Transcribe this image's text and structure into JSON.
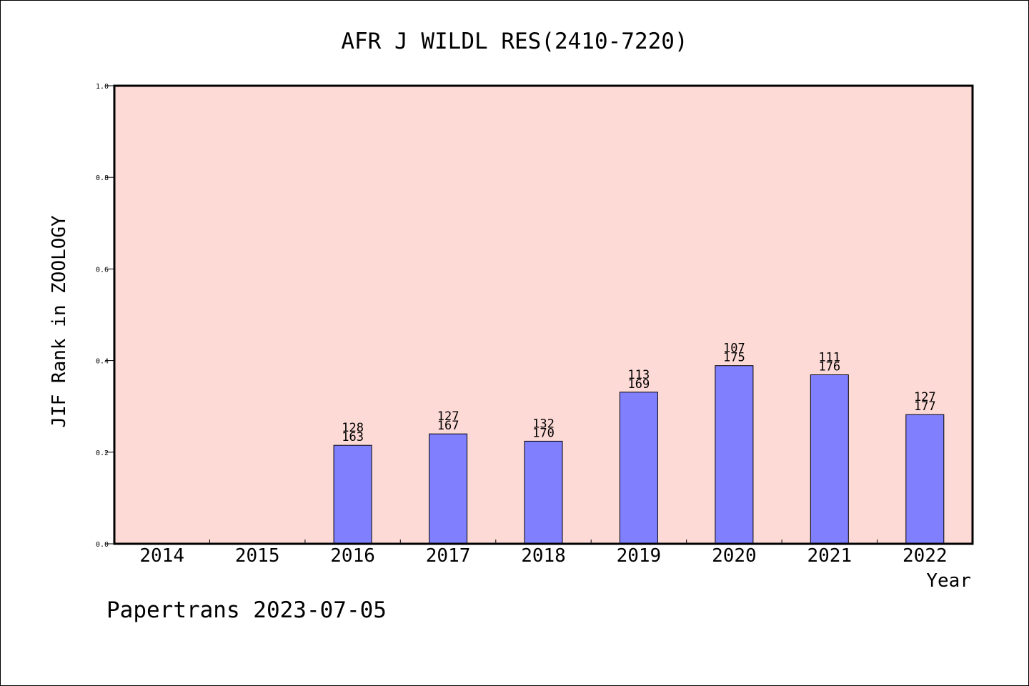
{
  "chart_data": {
    "type": "bar",
    "title": "AFR J WILDL RES(2410-7220)",
    "xlabel": "Year",
    "ylabel": "JIF Rank in ZOOLOGY",
    "footer": "Papertrans 2023-07-05",
    "categories": [
      "2014",
      "2015",
      "2016",
      "2017",
      "2018",
      "2019",
      "2020",
      "2021",
      "2022"
    ],
    "values": [
      null,
      null,
      0.215,
      0.24,
      0.224,
      0.331,
      0.389,
      0.369,
      0.282
    ],
    "rank": [
      null,
      null,
      128,
      127,
      132,
      113,
      107,
      111,
      127
    ],
    "total": [
      null,
      null,
      163,
      167,
      170,
      169,
      175,
      176,
      177
    ],
    "ylim": [
      0,
      1.0
    ],
    "yticks": [
      "0.0",
      "0.2",
      "0.4",
      "0.6",
      "0.8",
      "1.0"
    ],
    "grid": false,
    "legend": "none",
    "colors": {
      "plot_background": "#fddad6",
      "bar_fill": "#8080ff",
      "bar_edge": "#000000"
    }
  }
}
